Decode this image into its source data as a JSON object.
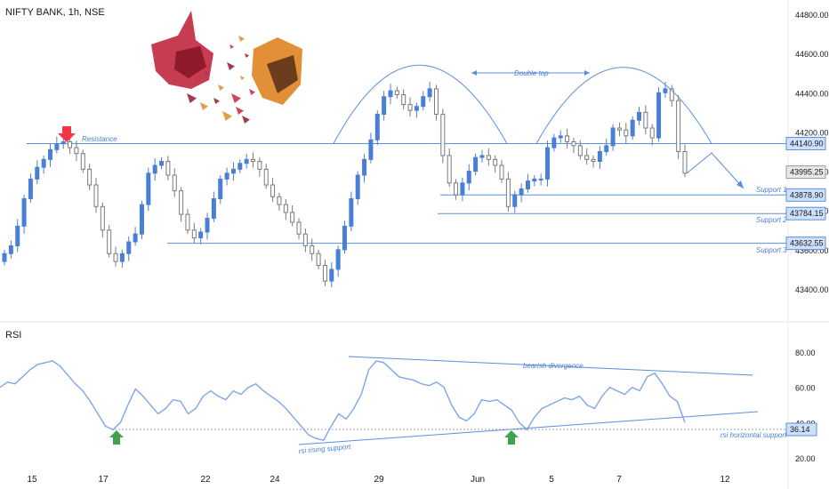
{
  "header": {
    "title": "NIFTY BANK, 1h, NSE"
  },
  "rsi_panel": {
    "label": "RSI"
  },
  "colors": {
    "up": "#4a7fd6",
    "down": "#7a7a7a",
    "line": "#5b8fdc",
    "arrow_down": "#f23645",
    "arrow_up": "#3fa34d",
    "annotation": "#4a7fd6"
  },
  "chart_data": [
    {
      "type": "candlestick",
      "title": "NIFTY BANK, 1h, NSE",
      "ylim": [
        43300,
        44900
      ],
      "y_ticks": [
        43400,
        43600,
        43800,
        44000,
        44200,
        44400,
        44600,
        44800
      ],
      "y_tick_labels": [
        "43400.00",
        "43600.00",
        "43800.00",
        "44000.00",
        "44200.00",
        "44400.00",
        "44600.00",
        "44800.00"
      ],
      "x_tick_labels": [
        "15",
        "17",
        "22",
        "24",
        "29",
        "Jun",
        "5",
        "7",
        "12"
      ],
      "close_series": [
        43580,
        43620,
        43720,
        43860,
        43960,
        44020,
        44060,
        44110,
        44140,
        44150,
        44120,
        44090,
        44010,
        43930,
        43820,
        43700,
        43580,
        43540,
        43580,
        43640,
        43680,
        43830,
        43990,
        44030,
        44050,
        43980,
        43900,
        43780,
        43700,
        43660,
        43690,
        43760,
        43860,
        43960,
        43990,
        44010,
        44040,
        44060,
        44050,
        44010,
        43930,
        43870,
        43830,
        43790,
        43740,
        43680,
        43620,
        43580,
        43520,
        43440,
        43500,
        43600,
        43720,
        43860,
        43980,
        44060,
        44160,
        44290,
        44380,
        44410,
        44390,
        44340,
        44310,
        44330,
        44380,
        44420,
        44290,
        44080,
        43940,
        43880,
        43940,
        44000,
        44070,
        44080,
        44060,
        44030,
        43960,
        43820,
        43880,
        43910,
        43950,
        43960,
        43960,
        44120,
        44170,
        44180,
        44150,
        44130,
        44080,
        44060,
        44050,
        44100,
        44130,
        44220,
        44210,
        44180,
        44260,
        44300,
        44220,
        44170,
        44400,
        44420,
        44360,
        44100,
        43990
      ],
      "price_labels": [
        {
          "text": "44140.90",
          "value": 44140.9
        },
        {
          "text": "43995.25",
          "value": 43995.25
        },
        {
          "text": "43878.90",
          "value": 43878.9
        },
        {
          "text": "43784.15",
          "value": 43784.15
        },
        {
          "text": "43632.55",
          "value": 43632.55
        }
      ],
      "annotations": [
        {
          "text": "Resistance",
          "value": 44140.9
        },
        {
          "text": "Support 1",
          "value": 43878.9
        },
        {
          "text": "Support 2",
          "value": 43784.15
        },
        {
          "text": "Support 3",
          "value": 43632.55
        },
        {
          "text": "Double top"
        }
      ]
    },
    {
      "type": "line",
      "title": "RSI",
      "ylim": [
        15,
        88
      ],
      "y_ticks": [
        20,
        40,
        60,
        80
      ],
      "y_tick_labels": [
        "20.00",
        "40.00",
        "60.00",
        "80.00"
      ],
      "values": [
        60,
        63,
        62,
        66,
        70,
        73,
        74,
        75,
        72,
        67,
        62,
        58,
        52,
        45,
        38,
        36,
        40,
        50,
        59,
        55,
        50,
        45,
        48,
        53,
        52,
        45,
        48,
        55,
        58,
        55,
        53,
        58,
        56,
        60,
        62,
        58,
        55,
        52,
        48,
        43,
        38,
        33,
        31,
        30,
        38,
        45,
        42,
        48,
        56,
        70,
        75,
        74,
        70,
        66,
        65,
        64,
        62,
        61,
        63,
        60,
        50,
        43,
        41,
        45,
        53,
        52,
        53,
        50,
        47,
        40,
        36,
        43,
        48,
        50,
        52,
        54,
        53,
        55,
        50,
        48,
        55,
        60,
        58,
        56,
        60,
        58,
        66,
        68,
        62,
        55,
        52,
        40
      ],
      "price_labels": [
        {
          "text": "36.14",
          "value": 36.14
        }
      ],
      "annotations": [
        {
          "text": "bearish divergence"
        },
        {
          "text": "rsi horizontal support"
        },
        {
          "text": "rsi rising support"
        }
      ]
    }
  ]
}
